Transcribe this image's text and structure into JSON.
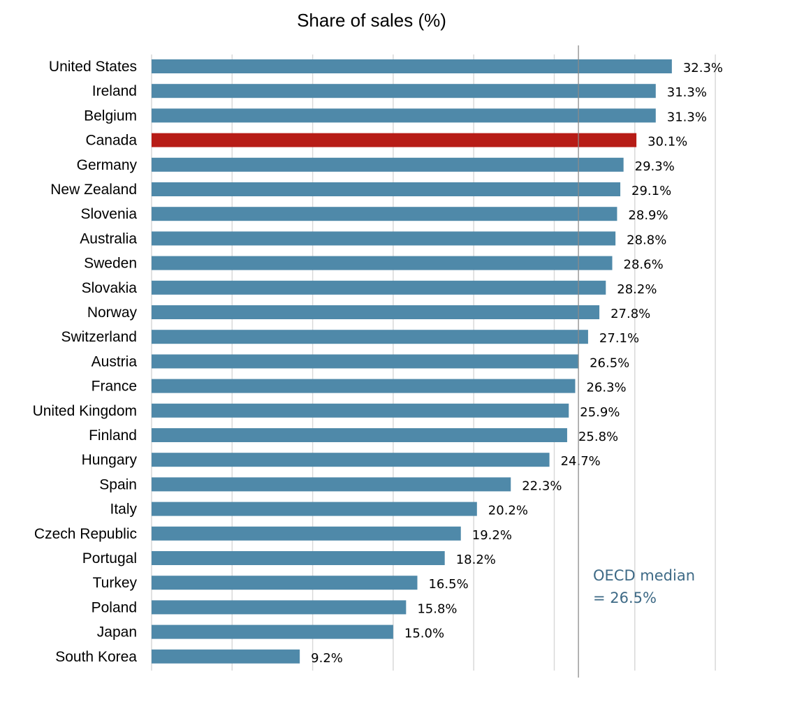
{
  "chart_data": {
    "type": "bar",
    "orientation": "horizontal",
    "title": "Share of sales (%)",
    "xlabel": "",
    "ylabel": "",
    "xlim": [
      0,
      35
    ],
    "grid": true,
    "categories": [
      "United States",
      "Ireland",
      "Belgium",
      "Canada",
      "Germany",
      "New Zealand",
      "Slovenia",
      "Australia",
      "Sweden",
      "Slovakia",
      "Norway",
      "Switzerland",
      "Austria",
      "France",
      "United Kingdom",
      "Finland",
      "Hungary",
      "Spain",
      "Italy",
      "Czech Republic",
      "Portugal",
      "Turkey",
      "Poland",
      "Japan",
      "South Korea"
    ],
    "values": [
      32.3,
      31.3,
      31.3,
      30.1,
      29.3,
      29.1,
      28.9,
      28.8,
      28.6,
      28.2,
      27.8,
      27.1,
      26.5,
      26.3,
      25.9,
      25.8,
      24.7,
      22.3,
      20.2,
      19.2,
      18.2,
      16.5,
      15.8,
      15.0,
      9.2
    ],
    "value_labels": [
      "32.3%",
      "31.3%",
      "31.3%",
      "30.1%",
      "29.3%",
      "29.1%",
      "28.9%",
      "28.8%",
      "28.6%",
      "28.2%",
      "27.8%",
      "27.1%",
      "26.5%",
      "26.3%",
      "25.9%",
      "25.8%",
      "24.7%",
      "22.3%",
      "20.2%",
      "19.2%",
      "18.2%",
      "16.5%",
      "15.8%",
      "15.0%",
      "9.2%"
    ],
    "highlight": "Canada",
    "colors": {
      "bar": "#4f89a9",
      "highlight": "#b71c16",
      "median_line": "#8a8a8a",
      "median_text": "#3e6a86",
      "grid": "#d9d9d9"
    },
    "reference_line": {
      "value": 26.5,
      "label_lines": [
        "OECD median",
        "= 26.5%"
      ]
    }
  }
}
